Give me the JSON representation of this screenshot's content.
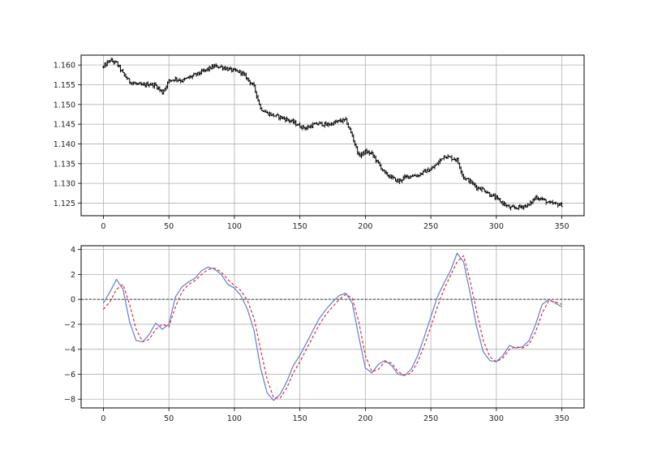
{
  "chart_data": [
    {
      "type": "line",
      "title": "",
      "xlabel": "",
      "ylabel": "",
      "xlim": [
        -17,
        367
      ],
      "ylim": [
        1.1218,
        1.1625
      ],
      "x_ticks": [
        0,
        50,
        100,
        150,
        200,
        250,
        300,
        350
      ],
      "x_tick_labels": [
        "0",
        "50",
        "100",
        "150",
        "200",
        "250",
        "300",
        "350"
      ],
      "y_ticks": [
        1.125,
        1.13,
        1.135,
        1.14,
        1.145,
        1.15,
        1.155,
        1.16
      ],
      "y_tick_labels": [
        "1.125",
        "1.130",
        "1.135",
        "1.140",
        "1.145",
        "1.150",
        "1.155",
        "1.160"
      ],
      "grid": true,
      "series": [
        {
          "name": "",
          "color": "#000000",
          "style": "ohlc-bars",
          "x": [
            0,
            5,
            10,
            15,
            20,
            25,
            30,
            35,
            40,
            45,
            50,
            55,
            60,
            65,
            70,
            75,
            80,
            85,
            90,
            95,
            100,
            105,
            110,
            115,
            120,
            125,
            130,
            135,
            140,
            145,
            150,
            155,
            160,
            165,
            170,
            175,
            180,
            185,
            190,
            195,
            200,
            205,
            210,
            215,
            220,
            225,
            230,
            235,
            240,
            245,
            250,
            255,
            260,
            265,
            270,
            275,
            280,
            285,
            290,
            295,
            300,
            305,
            310,
            315,
            320,
            325,
            330,
            335,
            340,
            345,
            350
          ],
          "values": [
            1.1595,
            1.1612,
            1.1605,
            1.1578,
            1.1558,
            1.1552,
            1.1548,
            1.1552,
            1.1548,
            1.153,
            1.156,
            1.1565,
            1.156,
            1.1568,
            1.1575,
            1.1582,
            1.159,
            1.1597,
            1.1595,
            1.159,
            1.1585,
            1.1582,
            1.1565,
            1.1545,
            1.149,
            1.1478,
            1.1472,
            1.1468,
            1.1462,
            1.1455,
            1.1445,
            1.144,
            1.1448,
            1.1452,
            1.1448,
            1.1452,
            1.1458,
            1.146,
            1.142,
            1.137,
            1.138,
            1.1375,
            1.135,
            1.1325,
            1.1315,
            1.1305,
            1.1315,
            1.132,
            1.132,
            1.133,
            1.1335,
            1.135,
            1.137,
            1.1365,
            1.136,
            1.1315,
            1.1305,
            1.129,
            1.1285,
            1.1272,
            1.1262,
            1.125,
            1.1238,
            1.1238,
            1.1242,
            1.1245,
            1.1265,
            1.126,
            1.125,
            1.1248,
            1.1245
          ]
        }
      ]
    },
    {
      "type": "line",
      "title": "",
      "xlabel": "",
      "ylabel": "",
      "xlim": [
        -17,
        367
      ],
      "ylim": [
        -8.7,
        4.3
      ],
      "x_ticks": [
        0,
        50,
        100,
        150,
        200,
        250,
        300,
        350
      ],
      "x_tick_labels": [
        "0",
        "50",
        "100",
        "150",
        "200",
        "250",
        "300",
        "350"
      ],
      "y_ticks": [
        -8,
        -6,
        -4,
        -2,
        0,
        2,
        4
      ],
      "y_tick_labels": [
        "−8",
        "−6",
        "−4",
        "−2",
        "0",
        "2",
        "4"
      ],
      "grid": true,
      "reference_line": {
        "y": 0,
        "color": "#000000",
        "style": "dashed"
      },
      "series": [
        {
          "name": "",
          "color": "#5b7fd6",
          "style": "solid",
          "x": [
            0,
            5,
            10,
            15,
            20,
            25,
            30,
            35,
            40,
            45,
            50,
            55,
            60,
            65,
            70,
            75,
            80,
            85,
            90,
            95,
            100,
            105,
            110,
            115,
            120,
            125,
            130,
            135,
            140,
            145,
            150,
            155,
            160,
            165,
            170,
            175,
            180,
            185,
            190,
            195,
            200,
            205,
            210,
            215,
            220,
            225,
            230,
            235,
            240,
            245,
            250,
            255,
            260,
            265,
            270,
            275,
            280,
            285,
            290,
            295,
            300,
            305,
            310,
            315,
            320,
            325,
            330,
            335,
            340,
            345,
            350
          ],
          "values": [
            -0.3,
            0.6,
            1.6,
            0.8,
            -1.8,
            -3.3,
            -3.4,
            -2.8,
            -1.9,
            -2.4,
            -2.0,
            0.2,
            1.0,
            1.4,
            1.7,
            2.3,
            2.6,
            2.4,
            2.0,
            1.2,
            0.9,
            0.3,
            -0.8,
            -2.5,
            -5.5,
            -7.5,
            -8.1,
            -7.6,
            -6.6,
            -5.3,
            -4.5,
            -3.5,
            -2.5,
            -1.5,
            -0.8,
            -0.2,
            0.3,
            0.5,
            -0.3,
            -3.0,
            -5.5,
            -5.9,
            -5.2,
            -4.9,
            -5.3,
            -6.0,
            -6.1,
            -5.6,
            -4.5,
            -3.0,
            -1.4,
            0.2,
            1.3,
            2.3,
            3.7,
            3.0,
            0.5,
            -2.2,
            -4.2,
            -4.9,
            -5.0,
            -4.5,
            -3.7,
            -3.9,
            -3.8,
            -3.3,
            -2.0,
            -0.4,
            0.0,
            -0.3,
            -0.6
          ]
        },
        {
          "name": "",
          "color": "#e03030",
          "style": "dashed",
          "x": [
            0,
            5,
            10,
            15,
            20,
            25,
            30,
            35,
            40,
            45,
            50,
            55,
            60,
            65,
            70,
            75,
            80,
            85,
            90,
            95,
            100,
            105,
            110,
            115,
            120,
            125,
            130,
            135,
            140,
            145,
            150,
            155,
            160,
            165,
            170,
            175,
            180,
            185,
            190,
            195,
            200,
            205,
            210,
            215,
            220,
            225,
            230,
            235,
            240,
            245,
            250,
            255,
            260,
            265,
            270,
            275,
            280,
            285,
            290,
            295,
            300,
            305,
            310,
            315,
            320,
            325,
            330,
            335,
            340,
            345,
            350
          ],
          "values": [
            -0.8,
            -0.2,
            0.8,
            1.2,
            -0.4,
            -2.4,
            -3.4,
            -3.2,
            -2.4,
            -2.0,
            -2.2,
            -0.6,
            0.6,
            1.2,
            1.5,
            2.0,
            2.4,
            2.5,
            2.2,
            1.6,
            1.1,
            0.7,
            -0.1,
            -1.5,
            -4.0,
            -6.4,
            -7.9,
            -7.9,
            -7.1,
            -5.9,
            -5.0,
            -4.0,
            -3.0,
            -2.0,
            -1.2,
            -0.6,
            0.0,
            0.4,
            0.1,
            -1.8,
            -4.5,
            -5.8,
            -5.6,
            -5.0,
            -5.1,
            -5.8,
            -6.1,
            -5.9,
            -5.0,
            -3.7,
            -2.2,
            -0.6,
            0.8,
            1.9,
            3.0,
            3.5,
            1.5,
            -1.0,
            -3.3,
            -4.6,
            -5.0,
            -4.7,
            -4.0,
            -3.8,
            -3.9,
            -3.6,
            -2.6,
            -1.1,
            -0.1,
            -0.2,
            -0.4
          ]
        }
      ]
    }
  ]
}
